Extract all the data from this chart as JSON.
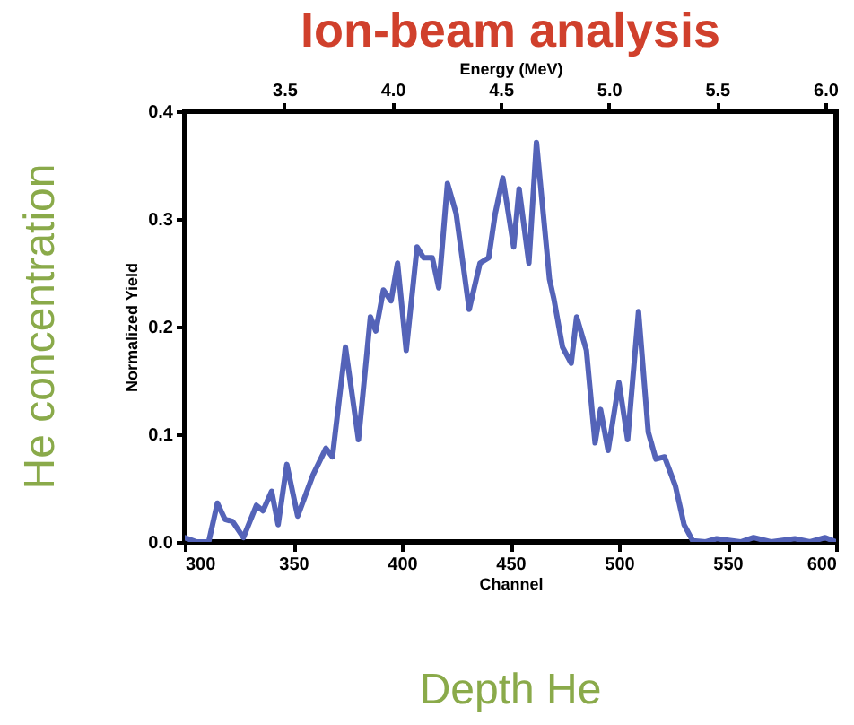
{
  "chart_data": {
    "type": "line",
    "title": "Ion-beam analysis",
    "xlabel": "Channel",
    "ylabel": "Normalized Yield",
    "x2label": "Energy (MeV)",
    "annotations": [
      "He concentration",
      "Depth He"
    ],
    "x": [
      300,
      305.5,
      311,
      315,
      318.5,
      322,
      327,
      333,
      336,
      340,
      343,
      347,
      352,
      359,
      365,
      368,
      374,
      380,
      385.5,
      388,
      391.5,
      395,
      398,
      402,
      407,
      410,
      414,
      417,
      421,
      425,
      431,
      436,
      440,
      443,
      446.5,
      451.5,
      454,
      458.5,
      462,
      468,
      470,
      474,
      478,
      480.5,
      485,
      489,
      491.5,
      495,
      500,
      504,
      509,
      513.5,
      517,
      521,
      526,
      530,
      534,
      540,
      545,
      556,
      562,
      570,
      581,
      588,
      595,
      600
    ],
    "series": [
      {
        "color": "#5463b8",
        "values": [
          0.004,
          0.0,
          0.0,
          0.036,
          0.021,
          0.019,
          0.004,
          0.034,
          0.029,
          0.047,
          0.016,
          0.072,
          0.024,
          0.062,
          0.087,
          0.079,
          0.181,
          0.095,
          0.209,
          0.196,
          0.234,
          0.224,
          0.259,
          0.178,
          0.274,
          0.264,
          0.264,
          0.236,
          0.333,
          0.305,
          0.216,
          0.259,
          0.264,
          0.305,
          0.338,
          0.274,
          0.328,
          0.259,
          0.371,
          0.244,
          0.226,
          0.181,
          0.166,
          0.209,
          0.178,
          0.092,
          0.123,
          0.085,
          0.148,
          0.095,
          0.214,
          0.102,
          0.077,
          0.079,
          0.052,
          0.016,
          0.001,
          0.0,
          0.003,
          0.0,
          0.004,
          0.0,
          0.003,
          0.0,
          0.004,
          0.0
        ]
      }
    ],
    "xlim": [
      300,
      600
    ],
    "xticks": [
      300,
      350,
      400,
      450,
      500,
      550,
      600
    ],
    "ylim": [
      0,
      0.4
    ],
    "yticks": [
      {
        "value": 0,
        "label": "0.0"
      },
      0.1,
      0.2,
      0.3,
      0.4
    ],
    "x2lim": [
      3.04,
      6.05
    ],
    "x2ticks": [
      3.5,
      {
        "value": 4,
        "label": "4.0"
      },
      4.5,
      {
        "value": 5,
        "label": "5.0"
      },
      5.5,
      {
        "value": 6,
        "label": "6.0"
      }
    ],
    "grid": false,
    "marker": "none",
    "line_style": "solid"
  }
}
